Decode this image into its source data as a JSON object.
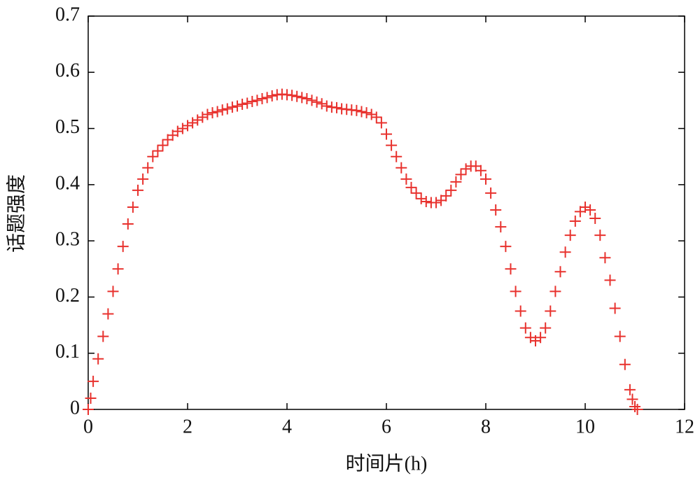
{
  "chart_data": {
    "type": "scatter",
    "xlabel": "时间片(h)",
    "ylabel": "话题强度",
    "color": "#e8322e",
    "x": [
      0,
      0.05,
      0.1,
      0.2,
      0.3,
      0.4,
      0.5,
      0.6,
      0.7,
      0.8,
      0.9,
      1.0,
      1.1,
      1.2,
      1.3,
      1.4,
      1.5,
      1.6,
      1.7,
      1.8,
      1.9,
      2.0,
      2.1,
      2.2,
      2.3,
      2.4,
      2.5,
      2.6,
      2.7,
      2.8,
      2.9,
      3.0,
      3.1,
      3.2,
      3.3,
      3.4,
      3.5,
      3.6,
      3.7,
      3.8,
      3.9,
      4.0,
      4.1,
      4.2,
      4.3,
      4.4,
      4.5,
      4.6,
      4.7,
      4.8,
      4.9,
      5.0,
      5.1,
      5.2,
      5.3,
      5.4,
      5.5,
      5.6,
      5.7,
      5.8,
      5.9,
      6.0,
      6.1,
      6.2,
      6.3,
      6.4,
      6.5,
      6.6,
      6.7,
      6.8,
      6.9,
      7.0,
      7.1,
      7.2,
      7.3,
      7.4,
      7.5,
      7.6,
      7.7,
      7.8,
      7.9,
      8.0,
      8.1,
      8.2,
      8.3,
      8.4,
      8.5,
      8.6,
      8.7,
      8.8,
      8.9,
      9.0,
      9.1,
      9.2,
      9.3,
      9.4,
      9.5,
      9.6,
      9.7,
      9.8,
      9.9,
      10.0,
      10.1,
      10.2,
      10.3,
      10.4,
      10.5,
      10.6,
      10.7,
      10.8,
      10.9,
      10.95,
      11.0,
      11.05
    ],
    "values": [
      0,
      0.02,
      0.05,
      0.09,
      0.13,
      0.17,
      0.21,
      0.25,
      0.29,
      0.33,
      0.36,
      0.39,
      0.41,
      0.43,
      0.45,
      0.46,
      0.47,
      0.48,
      0.488,
      0.495,
      0.5,
      0.505,
      0.51,
      0.515,
      0.52,
      0.525,
      0.528,
      0.53,
      0.533,
      0.535,
      0.538,
      0.54,
      0.543,
      0.545,
      0.548,
      0.55,
      0.553,
      0.555,
      0.558,
      0.56,
      0.561,
      0.56,
      0.559,
      0.557,
      0.555,
      0.553,
      0.55,
      0.547,
      0.544,
      0.54,
      0.538,
      0.537,
      0.535,
      0.534,
      0.533,
      0.532,
      0.53,
      0.528,
      0.525,
      0.52,
      0.51,
      0.49,
      0.47,
      0.45,
      0.43,
      0.41,
      0.395,
      0.385,
      0.375,
      0.37,
      0.368,
      0.368,
      0.372,
      0.38,
      0.39,
      0.405,
      0.418,
      0.428,
      0.433,
      0.433,
      0.425,
      0.41,
      0.385,
      0.355,
      0.325,
      0.29,
      0.25,
      0.21,
      0.175,
      0.145,
      0.128,
      0.122,
      0.128,
      0.145,
      0.175,
      0.21,
      0.245,
      0.28,
      0.31,
      0.335,
      0.352,
      0.36,
      0.355,
      0.34,
      0.31,
      0.27,
      0.23,
      0.18,
      0.13,
      0.08,
      0.035,
      0.018,
      0.005,
      0
    ],
    "xlim": [
      0,
      12
    ],
    "ylim": [
      0,
      0.7
    ],
    "xticks": [
      0,
      2,
      4,
      6,
      8,
      10,
      12
    ],
    "yticks": [
      0,
      0.1,
      0.2,
      0.3,
      0.4,
      0.5,
      0.6,
      0.7
    ]
  }
}
